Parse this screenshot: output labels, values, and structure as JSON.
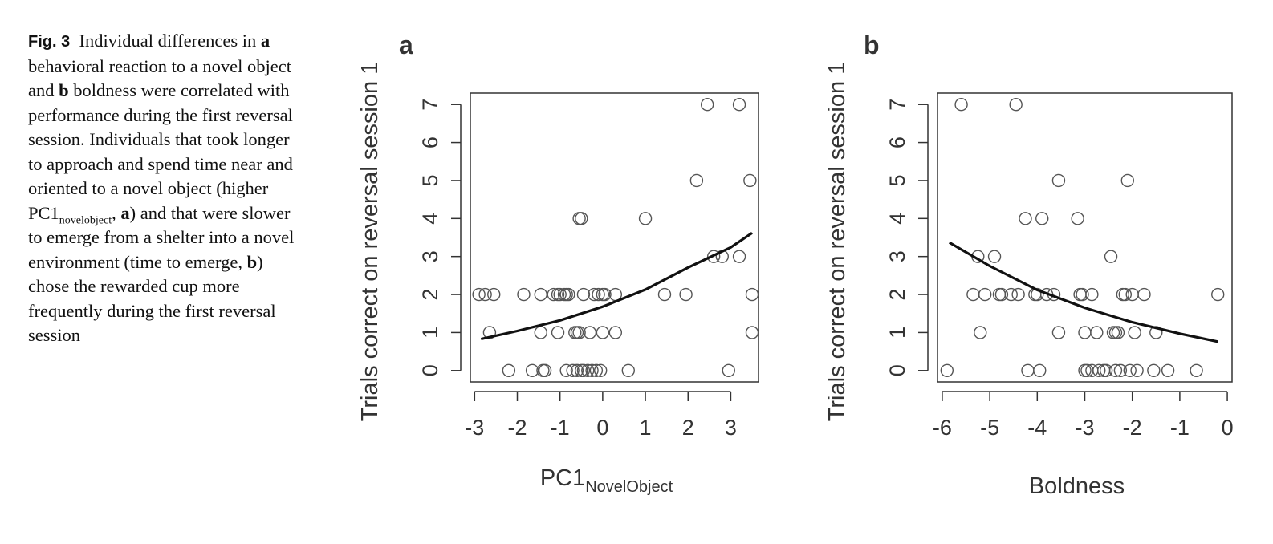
{
  "caption": {
    "label": "Fig. 3",
    "part1": "Individual differences in",
    "a_letter": "a",
    "part2": "behavioral reaction to a novel object and",
    "b_letter": "b",
    "part3": "boldness were correlated with performance during the first reversal session. Individuals that took longer to approach and spend time near and oriented to a novel object (higher PC1",
    "sub": "novelobject",
    "part4": ",",
    "a_letter2": "a",
    "part5": ") and that were slower to emerge from a shelter into a novel environment (time to emerge,",
    "b_letter2": "b",
    "part6": ") chose the rewarded cup more frequently during the first reversal session"
  },
  "chart_data": [
    {
      "type": "scatter",
      "panel_label": "a",
      "xlabel": "PC1",
      "xlabel_sub": "NovelObject",
      "ylabel": "Trials correct on reversal session 1",
      "xlim": [
        -3.1,
        3.65
      ],
      "ylim": [
        -0.3,
        7.3
      ],
      "xticks": [
        -3,
        -2,
        -1,
        0,
        1,
        2,
        3
      ],
      "yticks": [
        0,
        1,
        2,
        3,
        4,
        5,
        6,
        7
      ],
      "grid": false,
      "points": [
        [
          -2.9,
          2
        ],
        [
          -2.75,
          2
        ],
        [
          -2.55,
          2
        ],
        [
          -2.65,
          1
        ],
        [
          -2.2,
          0
        ],
        [
          -1.85,
          2
        ],
        [
          -1.65,
          0
        ],
        [
          -1.45,
          2
        ],
        [
          -1.45,
          1
        ],
        [
          -1.4,
          0
        ],
        [
          -1.35,
          0
        ],
        [
          -1.15,
          2
        ],
        [
          -1.05,
          2
        ],
        [
          -1.0,
          2
        ],
        [
          -0.9,
          2
        ],
        [
          -0.85,
          2
        ],
        [
          -0.8,
          2
        ],
        [
          -1.05,
          1
        ],
        [
          -0.85,
          0
        ],
        [
          -0.65,
          1
        ],
        [
          -0.6,
          1
        ],
        [
          -0.55,
          1
        ],
        [
          -0.7,
          0
        ],
        [
          -0.6,
          0
        ],
        [
          -0.5,
          0
        ],
        [
          -0.45,
          0
        ],
        [
          -0.35,
          0
        ],
        [
          -0.25,
          0
        ],
        [
          -0.15,
          0
        ],
        [
          -0.05,
          0
        ],
        [
          -0.55,
          4
        ],
        [
          -0.5,
          4
        ],
        [
          -0.45,
          2
        ],
        [
          -0.3,
          1
        ],
        [
          -0.2,
          2
        ],
        [
          -0.1,
          2
        ],
        [
          0.0,
          2
        ],
        [
          0.05,
          2
        ],
        [
          0.3,
          2
        ],
        [
          0.0,
          1
        ],
        [
          0.3,
          1
        ],
        [
          0.6,
          0
        ],
        [
          1.0,
          4
        ],
        [
          1.45,
          2
        ],
        [
          1.95,
          2
        ],
        [
          2.2,
          5
        ],
        [
          2.45,
          7
        ],
        [
          2.6,
          3
        ],
        [
          2.8,
          3
        ],
        [
          2.95,
          0
        ],
        [
          3.2,
          3
        ],
        [
          3.2,
          7
        ],
        [
          3.45,
          5
        ],
        [
          3.5,
          2
        ],
        [
          3.5,
          1
        ]
      ],
      "fit_curve": [
        [
          -2.85,
          0.83
        ],
        [
          -2.0,
          1.04
        ],
        [
          -1.0,
          1.32
        ],
        [
          0.0,
          1.68
        ],
        [
          1.0,
          2.13
        ],
        [
          2.0,
          2.71
        ],
        [
          3.0,
          3.24
        ],
        [
          3.5,
          3.62
        ]
      ]
    },
    {
      "type": "scatter",
      "panel_label": "b",
      "xlabel": "Boldness",
      "ylabel": "Trials correct on reversal session 1",
      "xlim": [
        -6.1,
        0.1
      ],
      "ylim": [
        -0.3,
        7.3
      ],
      "xticks": [
        -6,
        -5,
        -4,
        -3,
        -2,
        -1,
        0
      ],
      "yticks": [
        0,
        1,
        2,
        3,
        4,
        5,
        6,
        7
      ],
      "grid": false,
      "points": [
        [
          -5.9,
          0
        ],
        [
          -5.6,
          7
        ],
        [
          -5.35,
          2
        ],
        [
          -5.25,
          3
        ],
        [
          -5.2,
          1
        ],
        [
          -5.1,
          2
        ],
        [
          -4.9,
          3
        ],
        [
          -4.8,
          2
        ],
        [
          -4.75,
          2
        ],
        [
          -4.55,
          2
        ],
        [
          -4.45,
          7
        ],
        [
          -4.4,
          2
        ],
        [
          -4.25,
          4
        ],
        [
          -4.2,
          0
        ],
        [
          -4.05,
          2
        ],
        [
          -4.0,
          2
        ],
        [
          -3.95,
          0
        ],
        [
          -3.9,
          4
        ],
        [
          -3.8,
          2
        ],
        [
          -3.65,
          2
        ],
        [
          -3.55,
          5
        ],
        [
          -3.55,
          1
        ],
        [
          -3.15,
          4
        ],
        [
          -3.1,
          2
        ],
        [
          -3.05,
          2
        ],
        [
          -3.0,
          1
        ],
        [
          -3.0,
          0
        ],
        [
          -2.95,
          0
        ],
        [
          -2.85,
          2
        ],
        [
          -2.85,
          0
        ],
        [
          -2.75,
          1
        ],
        [
          -2.7,
          0
        ],
        [
          -2.6,
          0
        ],
        [
          -2.55,
          0
        ],
        [
          -2.45,
          3
        ],
        [
          -2.4,
          1
        ],
        [
          -2.35,
          1
        ],
        [
          -2.35,
          0
        ],
        [
          -2.3,
          1
        ],
        [
          -2.25,
          0
        ],
        [
          -2.2,
          2
        ],
        [
          -2.15,
          2
        ],
        [
          -2.1,
          5
        ],
        [
          -2.05,
          0
        ],
        [
          -2.0,
          2
        ],
        [
          -1.95,
          1
        ],
        [
          -1.9,
          0
        ],
        [
          -1.75,
          2
        ],
        [
          -1.55,
          0
        ],
        [
          -1.5,
          1
        ],
        [
          -1.25,
          0
        ],
        [
          -0.65,
          0
        ],
        [
          -0.2,
          2
        ]
      ],
      "fit_curve": [
        [
          -5.85,
          3.37
        ],
        [
          -5.0,
          2.75
        ],
        [
          -4.0,
          2.12
        ],
        [
          -3.0,
          1.65
        ],
        [
          -2.0,
          1.27
        ],
        [
          -1.0,
          0.97
        ],
        [
          -0.2,
          0.76
        ]
      ]
    }
  ]
}
